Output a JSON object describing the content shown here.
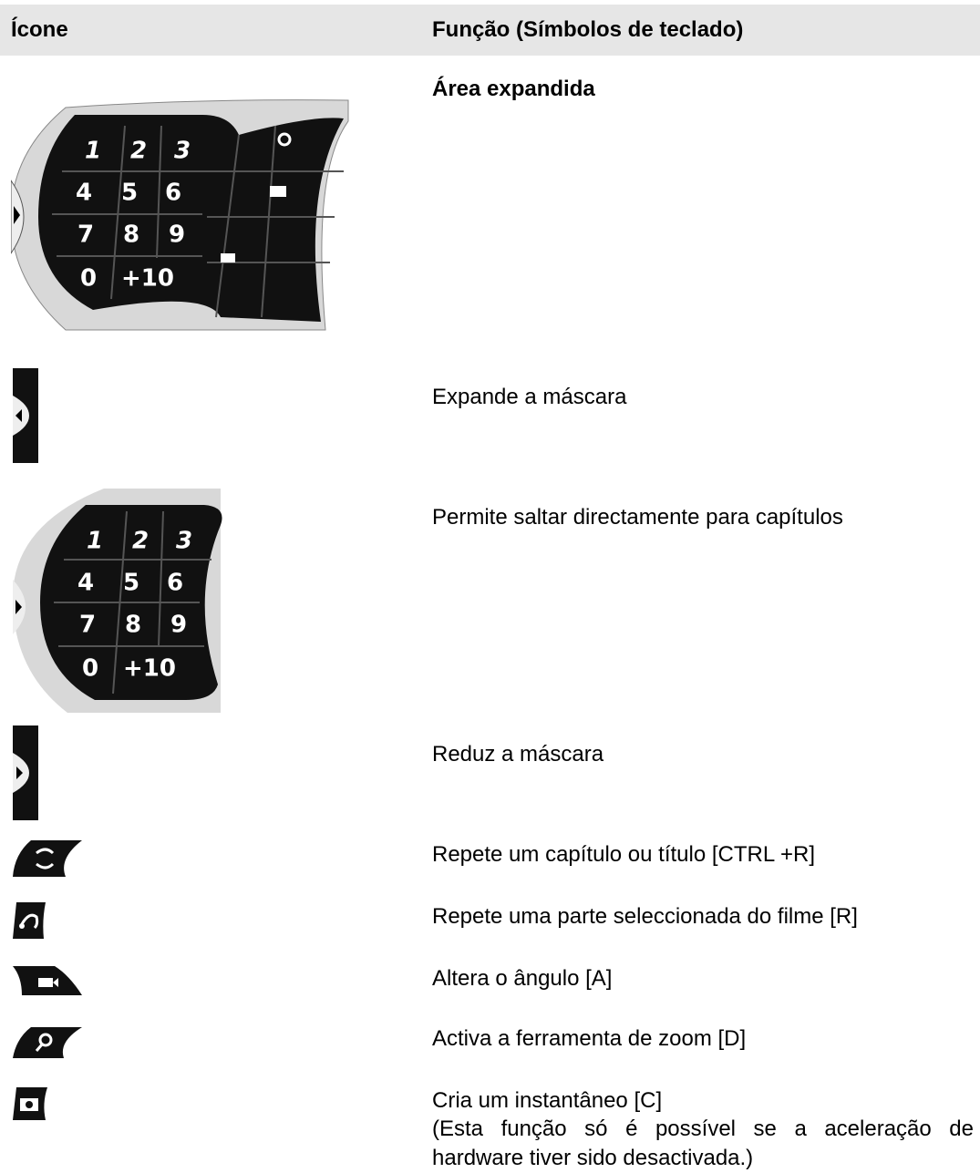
{
  "header": {
    "icon": "Ícone",
    "function": "Função (Símbolos de teclado)"
  },
  "keypad_keys": [
    "1",
    "2",
    "3",
    "4",
    "5",
    "6",
    "7",
    "8",
    "9",
    "0",
    "+10"
  ],
  "rows": [
    {
      "function": "Área expandida"
    },
    {
      "function": "Expande a máscara"
    },
    {
      "function": "Permite saltar directamente para capítulos"
    },
    {
      "function": "Reduz a máscara"
    },
    {
      "function": "Repete um capítulo ou título [CTRL +R]"
    },
    {
      "function": "Repete uma parte seleccionada do filme [R]"
    },
    {
      "function": "Altera o ângulo [A]"
    },
    {
      "function": "Activa a ferramenta de zoom [D]"
    },
    {
      "function": "Cria um instantâneo [C]",
      "note": "(Esta função só é possível se a aceleração de hardware tiver sido desactivada.)"
    }
  ]
}
